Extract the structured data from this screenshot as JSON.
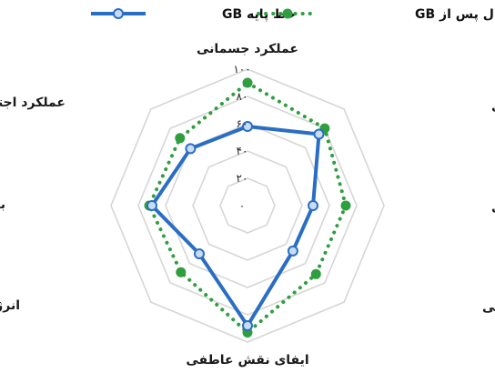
{
  "chart_data": {
    "type": "radar",
    "title": "",
    "axes": [
      "عملکرد جسمانی",
      "ایفای نقش جسمانی",
      "درد بدنی",
      "سلامت عمومی",
      "ایفای نقش عاطفی",
      "انرژی/خستگی",
      "بهزیستی هیجانی",
      "عملکرد اجتماعی"
    ],
    "ticks": [
      {
        "value": 0,
        "label": "۰"
      },
      {
        "value": 20,
        "label": "۲۰"
      },
      {
        "value": 40,
        "label": "۴۰"
      },
      {
        "value": 60,
        "label": "۶۰"
      },
      {
        "value": 80,
        "label": "۸۰"
      },
      {
        "value": 100,
        "label": "۱۰۰"
      }
    ],
    "range": [
      0,
      100
    ],
    "grid": true,
    "legend_position": "top",
    "series": [
      {
        "name": "خط پایه GB",
        "style": "solid",
        "color": "#2a6ec4",
        "marker_fill": "#c9dcf3",
        "values": [
          58,
          74,
          48,
          47,
          88,
          50,
          70,
          59
        ]
      },
      {
        "name": "یکسال پس از GB",
        "style": "dotted",
        "color": "#2e9e3e",
        "marker_fill": "#2e9e3e",
        "values": [
          90,
          80,
          72,
          71,
          93,
          69,
          72,
          70
        ]
      }
    ],
    "grid_color": "#d6d6d6"
  }
}
